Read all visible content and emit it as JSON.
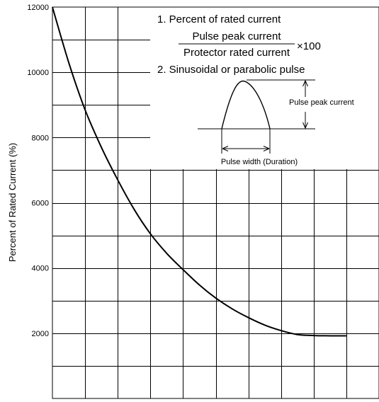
{
  "chart_data": {
    "type": "line",
    "title": "",
    "xlabel": "",
    "ylabel": "Percent of Rated Current (%)",
    "ylim": [
      0,
      12000
    ],
    "y_ticks": [
      "12000",
      "10000",
      "8000",
      "6000",
      "4000",
      "2000"
    ],
    "grid": true,
    "series": [
      {
        "x": [
          1.0,
          1.5,
          2.0,
          2.5,
          3.0,
          3.5,
          4.0,
          4.5,
          5.0,
          5.5,
          6.0,
          6.5,
          7.0,
          7.5,
          8.0,
          8.5,
          9.0,
          9.5,
          10.0
        ],
        "values": [
          12000,
          10300,
          8850,
          7700,
          6700,
          5800,
          5050,
          4450,
          3950,
          3480,
          3080,
          2750,
          2480,
          2250,
          2080,
          1960,
          1930,
          1920,
          1920
        ]
      }
    ]
  },
  "notes": {
    "line1": "1. Percent of rated current",
    "numerator": "Pulse peak current",
    "denominator": "Protector rated current",
    "multiplier": "×100",
    "line2": "2. Sinusoidal or parabolic pulse",
    "peak_label": "Pulse peak current",
    "width_label": "Pulse width (Duration)"
  }
}
